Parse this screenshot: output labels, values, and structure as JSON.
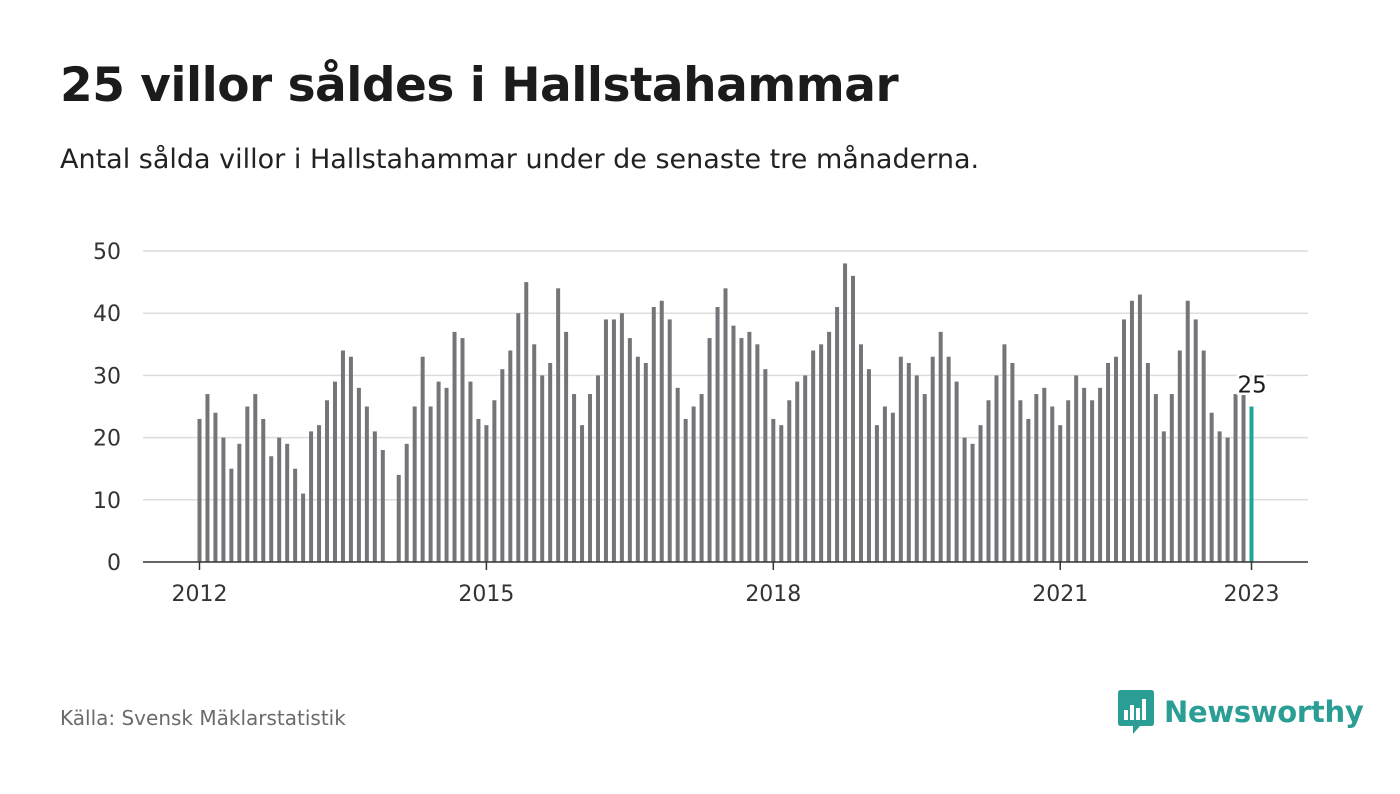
{
  "title": "25 villor såldes i Hallstahammar",
  "subtitle": "Antal sålda villor i Hallstahammar under de senaste tre månaderna.",
  "source": "Källa: Svensk Mäklarstatistik",
  "brand": "Newsworthy",
  "colors": {
    "bar": "#747479",
    "highlight": "#1fa596",
    "grid": "#dcdcdc",
    "brand": "#2a9d94"
  },
  "chart_data": {
    "type": "bar",
    "title": "25 villor såldes i Hallstahammar",
    "subtitle": "Antal sålda villor i Hallstahammar under de senaste tre månaderna.",
    "xlabel": "",
    "ylabel": "",
    "ylim": [
      0,
      50
    ],
    "yticks": [
      0,
      10,
      20,
      30,
      40,
      50
    ],
    "xticks": [
      "2012",
      "2015",
      "2018",
      "2021",
      "2023"
    ],
    "grid": true,
    "period": "monthly, rolling three-month total",
    "start": "2012-01",
    "end": "2023-01",
    "highlight_label": "25",
    "values": [
      23,
      27,
      24,
      20,
      15,
      19,
      25,
      27,
      23,
      17,
      20,
      19,
      15,
      11,
      21,
      22,
      26,
      29,
      34,
      33,
      28,
      25,
      21,
      18,
      null,
      14,
      19,
      25,
      33,
      25,
      29,
      28,
      37,
      36,
      29,
      23,
      22,
      26,
      31,
      34,
      40,
      45,
      35,
      30,
      32,
      44,
      37,
      27,
      22,
      27,
      30,
      39,
      39,
      40,
      36,
      33,
      32,
      41,
      42,
      39,
      28,
      23,
      25,
      27,
      36,
      41,
      44,
      38,
      36,
      37,
      35,
      31,
      23,
      22,
      26,
      29,
      30,
      34,
      35,
      37,
      41,
      48,
      46,
      35,
      31,
      22,
      25,
      24,
      33,
      32,
      30,
      27,
      33,
      37,
      33,
      29,
      20,
      19,
      22,
      26,
      30,
      35,
      32,
      26,
      23,
      27,
      28,
      25,
      22,
      26,
      30,
      28,
      26,
      28,
      32,
      33,
      39,
      42,
      43,
      32,
      27,
      21,
      27,
      34,
      42,
      39,
      34,
      24,
      21,
      20,
      27,
      27,
      25
    ]
  }
}
